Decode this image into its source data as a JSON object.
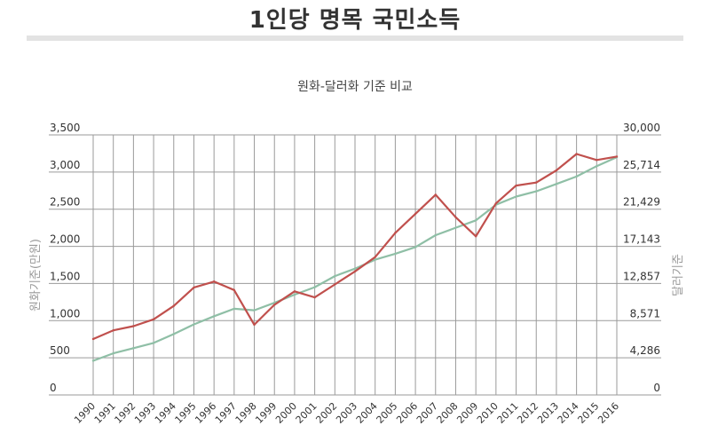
{
  "page_title": "1인당 명목 국민소득",
  "chart_data": {
    "type": "line",
    "title": "원화-달러화 기준 비교",
    "ylabel_left": "원화기준(만원)",
    "ylabel_right": "달러기준",
    "x": [
      "1990",
      "1991",
      "1992",
      "1993",
      "1994",
      "1995",
      "1996",
      "1997",
      "1998",
      "1999",
      "2000",
      "2001",
      "2002",
      "2003",
      "2004",
      "2005",
      "2006",
      "2007",
      "2008",
      "2009",
      "2010",
      "2011",
      "2012",
      "2013",
      "2014",
      "2015",
      "2016"
    ],
    "y_left_ticks": [
      "0",
      "500",
      "1,000",
      "1,500",
      "2,000",
      "2,500",
      "3,000",
      "3,500"
    ],
    "y_right_ticks": [
      "0",
      "4,286",
      "8,571",
      "12,857",
      "17,143",
      "21,429",
      "25,714",
      "30,000"
    ],
    "ylim_left": [
      0,
      3500
    ],
    "ylim_right": [
      0,
      30000
    ],
    "grid": true,
    "series": [
      {
        "axis": "left",
        "color": "#8fbfa6",
        "values": [
          460,
          560,
          630,
          700,
          820,
          950,
          1060,
          1160,
          1140,
          1240,
          1350,
          1450,
          1600,
          1700,
          1820,
          1900,
          1990,
          2150,
          2250,
          2350,
          2560,
          2670,
          2740,
          2840,
          2940,
          3080,
          3200
        ]
      },
      {
        "axis": "right",
        "color": "#c0504d",
        "values": [
          6450,
          7450,
          7940,
          8720,
          10270,
          12400,
          13080,
          12100,
          8100,
          10400,
          11950,
          11250,
          12750,
          14250,
          15900,
          18700,
          20900,
          23100,
          20500,
          18300,
          22100,
          24150,
          24500,
          25900,
          27800,
          27100,
          27500
        ]
      }
    ]
  }
}
